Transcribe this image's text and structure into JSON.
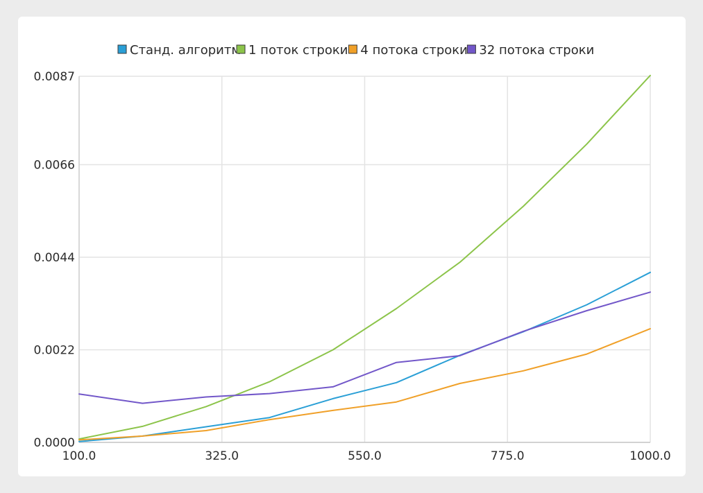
{
  "chart_data": {
    "type": "line",
    "title": "",
    "xlabel": "",
    "ylabel": "",
    "xlim": [
      100,
      1000
    ],
    "ylim": [
      0,
      0.0087
    ],
    "x_ticks": [
      "100.0",
      "325.0",
      "550.0",
      "775.0",
      "1000.0"
    ],
    "y_ticks": [
      "0.0000",
      "0.0022",
      "0.0044",
      "0.0066",
      "0.0087"
    ],
    "grid": true,
    "legend_position": "top",
    "x": [
      100,
      200,
      300,
      400,
      500,
      600,
      700,
      800,
      900,
      1000
    ],
    "series": [
      {
        "name": "Станд. алгоритм",
        "color": "#2a9fd6",
        "values": [
          2e-05,
          0.00015,
          0.00037,
          0.00059,
          0.00104,
          0.00142,
          0.00207,
          0.00263,
          0.00327,
          0.00404
        ]
      },
      {
        "name": "1 поток строки",
        "color": "#8cc44a",
        "values": [
          8e-05,
          0.00038,
          0.00085,
          0.00144,
          0.0022,
          0.00318,
          0.00428,
          0.00561,
          0.00709,
          0.00872
        ]
      },
      {
        "name": "4 потока строки",
        "color": "#f0a028",
        "values": [
          6e-05,
          0.00015,
          0.00028,
          0.00054,
          0.00076,
          0.00096,
          0.0014,
          0.0017,
          0.0021,
          0.0027
        ]
      },
      {
        "name": "32 потока строки",
        "color": "#7257c9",
        "values": [
          0.00115,
          0.00093,
          0.00108,
          0.00116,
          0.00132,
          0.0019,
          0.00206,
          0.00264,
          0.00313,
          0.00357
        ]
      }
    ]
  }
}
